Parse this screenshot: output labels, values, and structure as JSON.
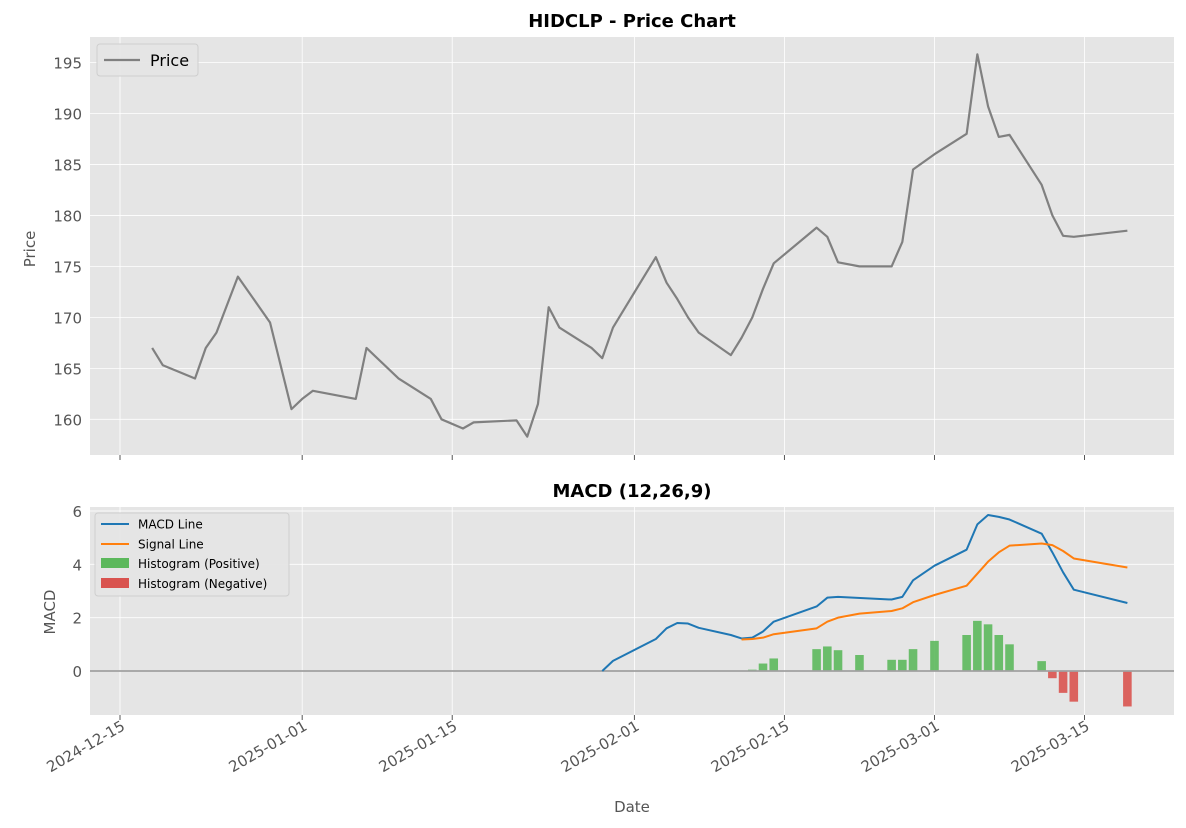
{
  "chart_data": [
    {
      "type": "line",
      "title": "HIDCLP - Price Chart",
      "ylabel": "Price",
      "xlabel": "",
      "ylim": [
        156.5,
        197.5
      ],
      "yticks": [
        160,
        165,
        170,
        175,
        180,
        185,
        190,
        195
      ],
      "xticks": [
        "2024-12-15",
        "2025-01-01",
        "2025-01-15",
        "2025-02-01",
        "2025-02-15",
        "2025-03-01",
        "2025-03-15"
      ],
      "grid": true,
      "legend": {
        "position": "top-left",
        "entries": [
          "Price"
        ]
      },
      "colors": {
        "price": "#808080",
        "background": "#e5e5e5",
        "grid": "#ffffff"
      },
      "series": [
        {
          "name": "Price",
          "points": [
            [
              "2024-12-18",
              167.0
            ],
            [
              "2024-12-19",
              165.3
            ],
            [
              "2024-12-22",
              164.0
            ],
            [
              "2024-12-23",
              167.0
            ],
            [
              "2024-12-24",
              168.5
            ],
            [
              "2024-12-26",
              174.0
            ],
            [
              "2024-12-29",
              169.5
            ],
            [
              "2024-12-31",
              161.0
            ],
            [
              "2025-01-01",
              162.0
            ],
            [
              "2025-01-02",
              162.8
            ],
            [
              "2025-01-06",
              162.0
            ],
            [
              "2025-01-07",
              167.0
            ],
            [
              "2025-01-10",
              164.0
            ],
            [
              "2025-01-13",
              162.0
            ],
            [
              "2025-01-14",
              160.0
            ],
            [
              "2025-01-16",
              159.1
            ],
            [
              "2025-01-17",
              159.7
            ],
            [
              "2025-01-21",
              159.9
            ],
            [
              "2025-01-22",
              158.3
            ],
            [
              "2025-01-23",
              161.5
            ],
            [
              "2025-01-24",
              171.0
            ],
            [
              "2025-01-25",
              169.0
            ],
            [
              "2025-01-28",
              167.0
            ],
            [
              "2025-01-29",
              166.0
            ],
            [
              "2025-01-30",
              169.0
            ],
            [
              "2025-02-03",
              175.9
            ],
            [
              "2025-02-04",
              173.4
            ],
            [
              "2025-02-05",
              171.8
            ],
            [
              "2025-02-06",
              170.0
            ],
            [
              "2025-02-07",
              168.5
            ],
            [
              "2025-02-10",
              166.3
            ],
            [
              "2025-02-11",
              168.0
            ],
            [
              "2025-02-12",
              170.0
            ],
            [
              "2025-02-13",
              172.8
            ],
            [
              "2025-02-14",
              175.3
            ],
            [
              "2025-02-18",
              178.8
            ],
            [
              "2025-02-19",
              177.9
            ],
            [
              "2025-02-20",
              175.4
            ],
            [
              "2025-02-22",
              175.0
            ],
            [
              "2025-02-25",
              175.0
            ],
            [
              "2025-02-26",
              177.4
            ],
            [
              "2025-02-27",
              184.5
            ],
            [
              "2025-03-01",
              186.0
            ],
            [
              "2025-03-04",
              188.0
            ],
            [
              "2025-03-05",
              195.8
            ],
            [
              "2025-03-06",
              190.7
            ],
            [
              "2025-03-07",
              187.7
            ],
            [
              "2025-03-08",
              187.9
            ],
            [
              "2025-03-11",
              183.0
            ],
            [
              "2025-03-12",
              180.0
            ],
            [
              "2025-03-13",
              178.0
            ],
            [
              "2025-03-14",
              177.9
            ],
            [
              "2025-03-19",
              178.5
            ]
          ]
        }
      ]
    },
    {
      "type": "line",
      "title": "MACD (12,26,9)",
      "ylabel": "MACD",
      "xlabel": "Date",
      "ylim": [
        -1.65,
        6.15
      ],
      "yticks": [
        0,
        2,
        4,
        6
      ],
      "xticks": [
        "2024-12-15",
        "2025-01-01",
        "2025-01-15",
        "2025-02-01",
        "2025-02-15",
        "2025-03-01",
        "2025-03-15"
      ],
      "grid": true,
      "zero_line": true,
      "legend": {
        "position": "top-left",
        "entries": [
          "MACD Line",
          "Signal Line",
          "Histogram (Positive)",
          "Histogram (Negative)"
        ]
      },
      "colors": {
        "macd": "#1f77b4",
        "signal": "#ff7f0e",
        "hist_positive": "#5cb85c",
        "hist_negative": "#d9534f",
        "zero_line": "#a0a0a0"
      },
      "series": [
        {
          "name": "MACD Line",
          "points": [
            [
              "2025-01-29",
              0.0
            ],
            [
              "2025-01-30",
              0.38
            ],
            [
              "2025-02-03",
              1.2
            ],
            [
              "2025-02-04",
              1.6
            ],
            [
              "2025-02-05",
              1.8
            ],
            [
              "2025-02-06",
              1.78
            ],
            [
              "2025-02-07",
              1.62
            ],
            [
              "2025-02-10",
              1.35
            ],
            [
              "2025-02-11",
              1.22
            ],
            [
              "2025-02-12",
              1.25
            ],
            [
              "2025-02-13",
              1.48
            ],
            [
              "2025-02-14",
              1.85
            ],
            [
              "2025-02-18",
              2.42
            ],
            [
              "2025-02-19",
              2.75
            ],
            [
              "2025-02-20",
              2.78
            ],
            [
              "2025-02-25",
              2.68
            ],
            [
              "2025-02-26",
              2.78
            ],
            [
              "2025-02-27",
              3.4
            ],
            [
              "2025-03-01",
              3.95
            ],
            [
              "2025-03-04",
              4.55
            ],
            [
              "2025-03-05",
              5.5
            ],
            [
              "2025-03-06",
              5.85
            ],
            [
              "2025-03-07",
              5.78
            ],
            [
              "2025-03-08",
              5.68
            ],
            [
              "2025-03-11",
              5.15
            ],
            [
              "2025-03-12",
              4.45
            ],
            [
              "2025-03-13",
              3.7
            ],
            [
              "2025-03-14",
              3.05
            ],
            [
              "2025-03-19",
              2.55
            ]
          ]
        },
        {
          "name": "Signal Line",
          "points": [
            [
              "2025-02-11",
              1.18
            ],
            [
              "2025-02-12",
              1.2
            ],
            [
              "2025-02-13",
              1.25
            ],
            [
              "2025-02-14",
              1.38
            ],
            [
              "2025-02-18",
              1.6
            ],
            [
              "2025-02-19",
              1.85
            ],
            [
              "2025-02-20",
              2.0
            ],
            [
              "2025-02-22",
              2.15
            ],
            [
              "2025-02-25",
              2.25
            ],
            [
              "2025-02-26",
              2.35
            ],
            [
              "2025-02-27",
              2.58
            ],
            [
              "2025-03-01",
              2.85
            ],
            [
              "2025-03-04",
              3.2
            ],
            [
              "2025-03-05",
              3.65
            ],
            [
              "2025-03-06",
              4.1
            ],
            [
              "2025-03-07",
              4.45
            ],
            [
              "2025-03-08",
              4.7
            ],
            [
              "2025-03-11",
              4.78
            ],
            [
              "2025-03-12",
              4.72
            ],
            [
              "2025-03-13",
              4.5
            ],
            [
              "2025-03-14",
              4.22
            ],
            [
              "2025-03-19",
              3.88
            ]
          ]
        },
        {
          "name": "Histogram (Positive)",
          "points": [
            [
              "2025-02-12",
              0.05
            ],
            [
              "2025-02-13",
              0.28
            ],
            [
              "2025-02-14",
              0.47
            ],
            [
              "2025-02-18",
              0.82
            ],
            [
              "2025-02-19",
              0.92
            ],
            [
              "2025-02-20",
              0.78
            ],
            [
              "2025-02-22",
              0.6
            ],
            [
              "2025-02-25",
              0.42
            ],
            [
              "2025-02-26",
              0.42
            ],
            [
              "2025-02-27",
              0.82
            ],
            [
              "2025-03-01",
              1.13
            ],
            [
              "2025-03-04",
              1.35
            ],
            [
              "2025-03-05",
              1.88
            ],
            [
              "2025-03-06",
              1.75
            ],
            [
              "2025-03-07",
              1.35
            ],
            [
              "2025-03-08",
              1.0
            ],
            [
              "2025-03-11",
              0.37
            ]
          ]
        },
        {
          "name": "Histogram (Negative)",
          "points": [
            [
              "2025-03-12",
              -0.27
            ],
            [
              "2025-03-13",
              -0.82
            ],
            [
              "2025-03-14",
              -1.15
            ],
            [
              "2025-03-19",
              -1.33
            ]
          ]
        }
      ]
    }
  ]
}
